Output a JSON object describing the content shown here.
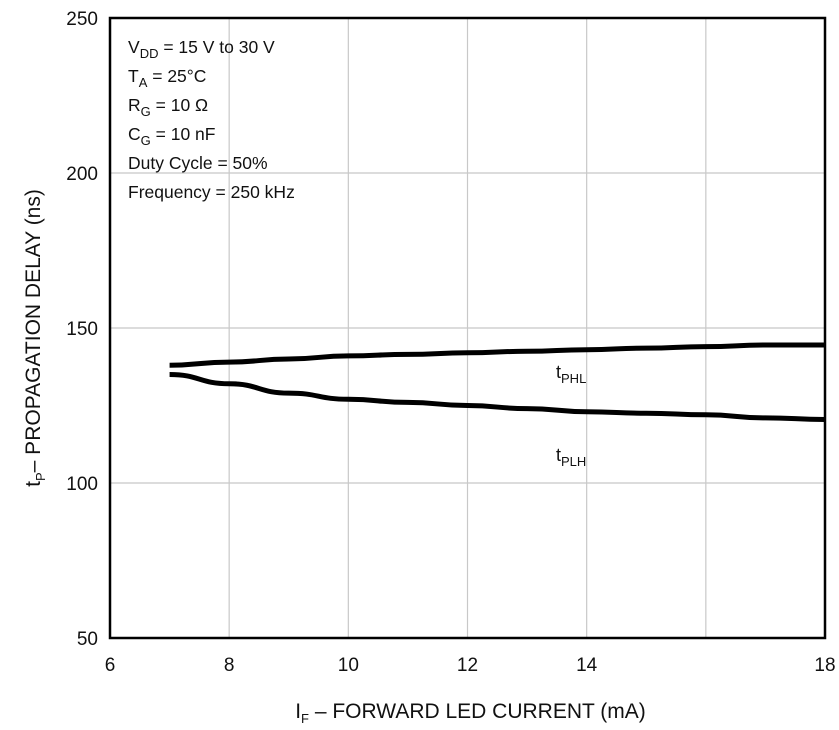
{
  "chart_data": {
    "type": "line",
    "xlabel": {
      "main": "I",
      "sub": "F",
      "rest": " – FORWARD LED CURRENT (mA)"
    },
    "ylabel": {
      "main": "t",
      "sub": "P",
      "rest": "– PROPAGATION DELAY (ns)"
    },
    "xlim": [
      6,
      18
    ],
    "ylim": [
      50,
      250
    ],
    "xticks": [
      6,
      8,
      10,
      12,
      14,
      16,
      18
    ],
    "xtick_labels": [
      "6",
      "8",
      "10",
      "12",
      "14",
      "",
      "18"
    ],
    "yticks": [
      50,
      100,
      150,
      200,
      250
    ],
    "ytick_labels": [
      "50",
      "100",
      "150",
      "200",
      "250"
    ],
    "grid": true,
    "conditions": [
      {
        "main": "V",
        "sub": "DD",
        "rest": " = 15 V to 30 V"
      },
      {
        "main": "T",
        "sub": "A",
        "rest": " = 25°C"
      },
      {
        "main": "R",
        "sub": "G",
        "rest": " = 10 Ω"
      },
      {
        "main": "C",
        "sub": "G",
        "rest": " = 10 nF"
      },
      {
        "main": "Duty Cycle = 50%",
        "sub": "",
        "rest": ""
      },
      {
        "main": "Frequency = 250 kHz",
        "sub": "",
        "rest": ""
      }
    ],
    "series": [
      {
        "name": "tPHL",
        "label_main": "t",
        "label_sub": "PHL",
        "x": [
          7,
          8,
          9,
          10,
          11,
          12,
          13,
          14,
          15,
          16,
          17,
          18
        ],
        "y": [
          138,
          139,
          140,
          141,
          141.5,
          142,
          142.5,
          143,
          143.5,
          144,
          144.5,
          144.5
        ]
      },
      {
        "name": "tPLH",
        "label_main": "t",
        "label_sub": "PLH",
        "x": [
          7,
          8,
          9,
          10,
          11,
          12,
          13,
          14,
          15,
          16,
          17,
          18
        ],
        "y": [
          135,
          132,
          129,
          127,
          126,
          125,
          124,
          123,
          122.5,
          122,
          121,
          120.5
        ]
      }
    ]
  }
}
